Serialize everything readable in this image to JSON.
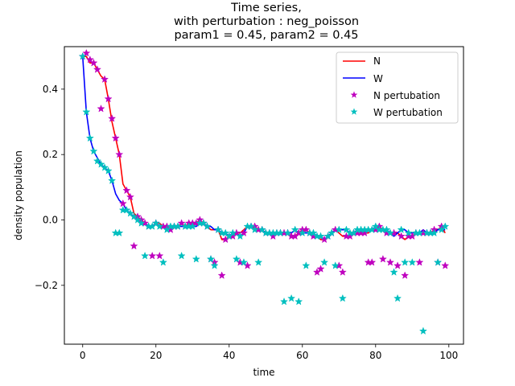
{
  "chart_data": {
    "type": "line",
    "title_lines": [
      "Time series,",
      "with perturbation : neg_poisson",
      "param1 = 0.45, param2 = 0.45"
    ],
    "xlabel": "time",
    "ylabel": "density population",
    "xlim": [
      -5,
      104
    ],
    "ylim": [
      -0.38,
      0.53
    ],
    "xticks": [
      0,
      20,
      40,
      60,
      80,
      100
    ],
    "yticks": [
      -0.2,
      0.0,
      0.2,
      0.4
    ],
    "ytick_labels": [
      "−0.2",
      "0.0",
      "0.2",
      "0.4"
    ],
    "grid": false,
    "legend_position": "top-right",
    "series": [
      {
        "name": "N",
        "kind": "line",
        "color": "#ff0000",
        "x": [
          0,
          1,
          2,
          3,
          4,
          5,
          6,
          7,
          8,
          9,
          10,
          11,
          12,
          13,
          14,
          15,
          16,
          17,
          18,
          19,
          20,
          21,
          22,
          23,
          24,
          25,
          26,
          27,
          28,
          29,
          30,
          31,
          32,
          33,
          34,
          35,
          36,
          37,
          38,
          39,
          40,
          41,
          42,
          43,
          44,
          45,
          46,
          47,
          48,
          49,
          50,
          51,
          52,
          53,
          54,
          55,
          56,
          57,
          58,
          59,
          60,
          61,
          62,
          63,
          64,
          65,
          66,
          67,
          68,
          69,
          70,
          71,
          72,
          73,
          74,
          75,
          76,
          77,
          78,
          79,
          80,
          81,
          82,
          83,
          84,
          85,
          86,
          87,
          88,
          89,
          90,
          91,
          92,
          93,
          94,
          95,
          96,
          97,
          98,
          99
        ],
        "y": [
          0.5,
          0.5,
          0.48,
          0.48,
          0.46,
          0.44,
          0.43,
          0.37,
          0.3,
          0.25,
          0.2,
          0.11,
          0.09,
          0.07,
          0.02,
          0.01,
          0.0,
          -0.01,
          -0.02,
          -0.02,
          -0.01,
          -0.01,
          -0.02,
          -0.02,
          -0.03,
          -0.02,
          -0.02,
          -0.01,
          -0.02,
          -0.01,
          -0.01,
          -0.01,
          0.0,
          -0.01,
          -0.02,
          -0.03,
          -0.03,
          -0.03,
          -0.06,
          -0.06,
          -0.05,
          -0.05,
          -0.04,
          -0.04,
          -0.03,
          -0.02,
          -0.02,
          -0.02,
          -0.03,
          -0.03,
          -0.04,
          -0.04,
          -0.05,
          -0.04,
          -0.04,
          -0.04,
          -0.04,
          -0.05,
          -0.05,
          -0.04,
          -0.03,
          -0.03,
          -0.04,
          -0.05,
          -0.05,
          -0.06,
          -0.06,
          -0.05,
          -0.04,
          -0.03,
          -0.04,
          -0.05,
          -0.05,
          -0.05,
          -0.04,
          -0.04,
          -0.04,
          -0.04,
          -0.04,
          -0.03,
          -0.03,
          -0.02,
          -0.03,
          -0.04,
          -0.04,
          -0.04,
          -0.04,
          -0.05,
          -0.06,
          -0.05,
          -0.05,
          -0.04,
          -0.04,
          -0.04,
          -0.04,
          -0.04,
          -0.03,
          -0.03,
          -0.02,
          -0.04
        ]
      },
      {
        "name": "W",
        "kind": "line",
        "color": "#0000ff",
        "x": [
          0,
          1,
          2,
          3,
          4,
          5,
          6,
          7,
          8,
          9,
          10,
          11,
          12,
          13,
          14,
          15,
          16,
          17,
          18,
          19,
          20,
          21,
          22,
          23,
          24,
          25,
          26,
          27,
          28,
          29,
          30,
          31,
          32,
          33,
          34,
          35,
          36,
          37,
          38,
          39,
          40,
          41,
          42,
          43,
          44,
          45,
          46,
          47,
          48,
          49,
          50,
          51,
          52,
          53,
          54,
          55,
          56,
          57,
          58,
          59,
          60,
          61,
          62,
          63,
          64,
          65,
          66,
          67,
          68,
          69,
          70,
          71,
          72,
          73,
          74,
          75,
          76,
          77,
          78,
          79,
          80,
          81,
          82,
          83,
          84,
          85,
          86,
          87,
          88,
          89,
          90,
          91,
          92,
          93,
          94,
          95,
          96,
          97,
          98,
          99
        ],
        "y": [
          0.5,
          0.33,
          0.25,
          0.21,
          0.19,
          0.17,
          0.16,
          0.15,
          0.12,
          0.08,
          0.06,
          0.05,
          0.03,
          0.02,
          0.01,
          0.0,
          -0.01,
          -0.01,
          -0.02,
          -0.02,
          -0.01,
          -0.02,
          -0.02,
          -0.03,
          -0.02,
          -0.02,
          -0.02,
          -0.02,
          -0.02,
          -0.02,
          -0.02,
          -0.02,
          -0.01,
          -0.01,
          -0.02,
          -0.02,
          -0.03,
          -0.03,
          -0.04,
          -0.04,
          -0.05,
          -0.04,
          -0.04,
          -0.05,
          -0.04,
          -0.02,
          -0.02,
          -0.03,
          -0.03,
          -0.03,
          -0.04,
          -0.04,
          -0.04,
          -0.04,
          -0.04,
          -0.04,
          -0.04,
          -0.04,
          -0.03,
          -0.04,
          -0.04,
          -0.04,
          -0.04,
          -0.04,
          -0.05,
          -0.05,
          -0.06,
          -0.05,
          -0.04,
          -0.03,
          -0.03,
          -0.03,
          -0.03,
          -0.04,
          -0.04,
          -0.03,
          -0.03,
          -0.03,
          -0.03,
          -0.03,
          -0.02,
          -0.03,
          -0.03,
          -0.03,
          -0.04,
          -0.05,
          -0.04,
          -0.03,
          -0.03,
          -0.04,
          -0.04,
          -0.04,
          -0.04,
          -0.03,
          -0.04,
          -0.04,
          -0.04,
          -0.03,
          -0.03,
          -0.03
        ]
      },
      {
        "name": "N pertubation",
        "kind": "scatter",
        "marker": "star",
        "color": "#bf00bf",
        "x": [
          0,
          1,
          2,
          3,
          4,
          5,
          6,
          7,
          8,
          9,
          10,
          11,
          12,
          13,
          14,
          15,
          16,
          17,
          18,
          19,
          20,
          21,
          22,
          23,
          24,
          25,
          26,
          27,
          28,
          29,
          30,
          31,
          32,
          33,
          34,
          35,
          36,
          37,
          38,
          39,
          40,
          41,
          42,
          43,
          44,
          45,
          46,
          47,
          48,
          49,
          50,
          51,
          52,
          53,
          54,
          55,
          56,
          57,
          58,
          59,
          60,
          61,
          62,
          63,
          64,
          65,
          66,
          67,
          68,
          69,
          70,
          71,
          72,
          73,
          74,
          75,
          76,
          77,
          78,
          79,
          80,
          81,
          82,
          83,
          84,
          85,
          86,
          87,
          88,
          89,
          90,
          91,
          92,
          93,
          94,
          95,
          96,
          97,
          98,
          99
        ],
        "y": [
          0.5,
          0.51,
          0.49,
          0.48,
          0.46,
          0.34,
          0.43,
          0.37,
          0.31,
          0.25,
          0.2,
          0.05,
          0.09,
          0.07,
          -0.08,
          0.01,
          0.0,
          -0.01,
          -0.02,
          -0.11,
          -0.01,
          -0.11,
          -0.02,
          -0.02,
          -0.03,
          -0.02,
          -0.02,
          -0.01,
          -0.02,
          -0.01,
          -0.01,
          -0.01,
          0.0,
          -0.01,
          -0.02,
          -0.12,
          -0.13,
          -0.03,
          -0.17,
          -0.06,
          -0.05,
          -0.05,
          -0.04,
          -0.13,
          -0.04,
          -0.14,
          -0.02,
          -0.02,
          -0.03,
          -0.03,
          -0.04,
          -0.04,
          -0.05,
          -0.04,
          -0.04,
          -0.04,
          -0.04,
          -0.05,
          -0.05,
          -0.04,
          -0.03,
          -0.03,
          -0.04,
          -0.05,
          -0.16,
          -0.15,
          -0.06,
          -0.05,
          -0.04,
          -0.03,
          -0.14,
          -0.16,
          -0.05,
          -0.05,
          -0.04,
          -0.04,
          -0.04,
          -0.04,
          -0.13,
          -0.13,
          -0.03,
          -0.02,
          -0.12,
          -0.04,
          -0.13,
          -0.04,
          -0.14,
          -0.05,
          -0.17,
          -0.05,
          -0.05,
          -0.04,
          -0.13,
          -0.04,
          -0.04,
          -0.04,
          -0.03,
          -0.13,
          -0.02,
          -0.14
        ]
      },
      {
        "name": "W pertubation",
        "kind": "scatter",
        "marker": "star",
        "color": "#00bfbf",
        "x": [
          0,
          1,
          2,
          3,
          4,
          5,
          6,
          7,
          8,
          9,
          10,
          11,
          12,
          13,
          14,
          15,
          16,
          17,
          18,
          19,
          20,
          21,
          22,
          23,
          24,
          25,
          26,
          27,
          28,
          29,
          30,
          31,
          32,
          33,
          34,
          35,
          36,
          37,
          38,
          39,
          40,
          41,
          42,
          43,
          44,
          45,
          46,
          47,
          48,
          49,
          50,
          51,
          52,
          53,
          54,
          55,
          56,
          57,
          58,
          59,
          60,
          61,
          62,
          63,
          64,
          65,
          66,
          67,
          68,
          69,
          70,
          71,
          72,
          73,
          74,
          75,
          76,
          77,
          78,
          79,
          80,
          81,
          82,
          83,
          84,
          85,
          86,
          87,
          88,
          89,
          90,
          91,
          92,
          93,
          94,
          95,
          96,
          97,
          98,
          99
        ],
        "y": [
          0.5,
          0.33,
          0.25,
          0.21,
          0.18,
          0.17,
          0.16,
          0.15,
          0.12,
          -0.04,
          -0.04,
          0.03,
          0.03,
          0.02,
          0.01,
          0.0,
          -0.01,
          -0.11,
          -0.02,
          -0.02,
          -0.01,
          -0.02,
          -0.13,
          -0.03,
          -0.02,
          -0.02,
          -0.02,
          -0.11,
          -0.02,
          -0.02,
          -0.02,
          -0.12,
          -0.01,
          -0.01,
          -0.02,
          -0.12,
          -0.14,
          -0.03,
          -0.04,
          -0.04,
          -0.05,
          -0.04,
          -0.12,
          -0.05,
          -0.13,
          -0.02,
          -0.02,
          -0.03,
          -0.13,
          -0.03,
          -0.04,
          -0.04,
          -0.04,
          -0.04,
          -0.04,
          -0.25,
          -0.04,
          -0.24,
          -0.03,
          -0.25,
          -0.04,
          -0.14,
          -0.04,
          -0.04,
          -0.05,
          -0.05,
          -0.13,
          -0.05,
          -0.04,
          -0.14,
          -0.03,
          -0.24,
          -0.03,
          -0.04,
          -0.04,
          -0.03,
          -0.03,
          -0.03,
          -0.03,
          -0.03,
          -0.02,
          -0.03,
          -0.03,
          -0.03,
          -0.04,
          -0.16,
          -0.24,
          -0.03,
          -0.13,
          -0.04,
          -0.13,
          -0.04,
          -0.04,
          -0.34,
          -0.04,
          -0.04,
          -0.04,
          -0.13,
          -0.03,
          -0.02
        ]
      }
    ]
  }
}
